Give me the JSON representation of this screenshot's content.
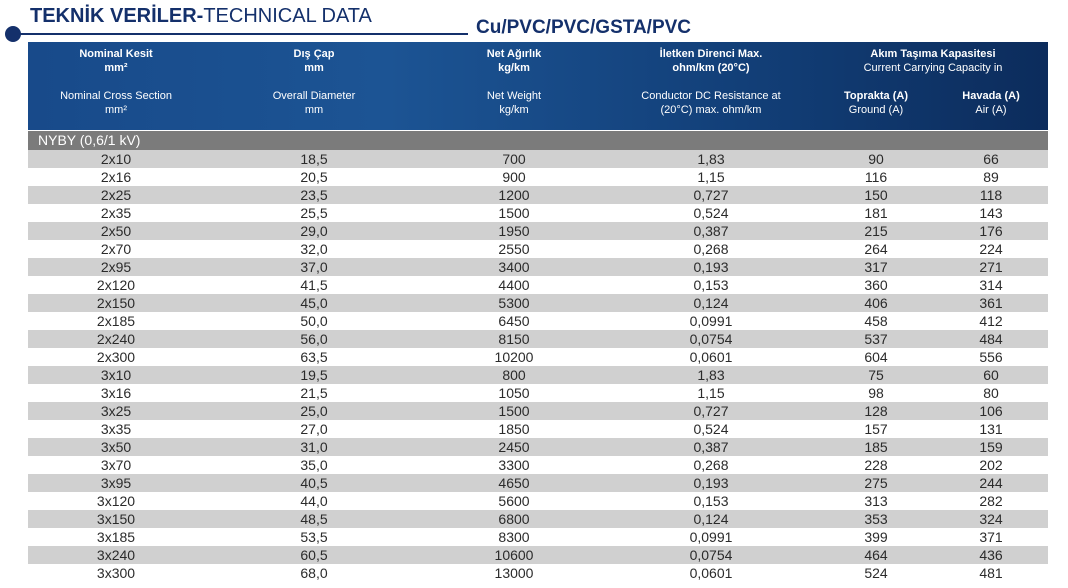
{
  "title": {
    "bold": "TEKNİK VERİLER-",
    "regular": "TECHNICAL DATA"
  },
  "cable_type": "Cu/PVC/PVC/GSTA/PVC",
  "columns": {
    "col1": {
      "tr": "Nominal Kesit",
      "tr_unit": "mm²",
      "en": "Nominal Cross Section",
      "en_unit": "mm²"
    },
    "col2": {
      "tr": "Dış Çap",
      "tr_unit": "mm",
      "en": "Overall Diameter",
      "en_unit": "mm"
    },
    "col3": {
      "tr": "Net Ağırlık",
      "tr_unit": "kg/km",
      "en": "Net Weight",
      "en_unit": "kg/km"
    },
    "col4": {
      "tr": "İletken Direnci Max.",
      "tr_unit": "ohm/km (20°C)",
      "en": "Conductor DC Resistance at",
      "en_unit": "(20°C) max. ohm/km"
    },
    "capacity": {
      "tr": "Akım Taşıma Kapasitesi",
      "en": "Current Carrying Capacity in"
    },
    "ground": {
      "tr": "Toprakta (A)",
      "en": "Ground (A)"
    },
    "air": {
      "tr": "Havada (A)",
      "en": "Air (A)"
    }
  },
  "section_label": "NYBY (0,6/1 kV)",
  "rows": [
    [
      "2x10",
      "18,5",
      "700",
      "1,83",
      "90",
      "66"
    ],
    [
      "2x16",
      "20,5",
      "900",
      "1,15",
      "116",
      "89"
    ],
    [
      "2x25",
      "23,5",
      "1200",
      "0,727",
      "150",
      "118"
    ],
    [
      "2x35",
      "25,5",
      "1500",
      "0,524",
      "181",
      "143"
    ],
    [
      "2x50",
      "29,0",
      "1950",
      "0,387",
      "215",
      "176"
    ],
    [
      "2x70",
      "32,0",
      "2550",
      "0,268",
      "264",
      "224"
    ],
    [
      "2x95",
      "37,0",
      "3400",
      "0,193",
      "317",
      "271"
    ],
    [
      "2x120",
      "41,5",
      "4400",
      "0,153",
      "360",
      "314"
    ],
    [
      "2x150",
      "45,0",
      "5300",
      "0,124",
      "406",
      "361"
    ],
    [
      "2x185",
      "50,0",
      "6450",
      "0,0991",
      "458",
      "412"
    ],
    [
      "2x240",
      "56,0",
      "8150",
      "0,0754",
      "537",
      "484"
    ],
    [
      "2x300",
      "63,5",
      "10200",
      "0,0601",
      "604",
      "556"
    ],
    [
      "3x10",
      "19,5",
      "800",
      "1,83",
      "75",
      "60"
    ],
    [
      "3x16",
      "21,5",
      "1050",
      "1,15",
      "98",
      "80"
    ],
    [
      "3x25",
      "25,0",
      "1500",
      "0,727",
      "128",
      "106"
    ],
    [
      "3x35",
      "27,0",
      "1850",
      "0,524",
      "157",
      "131"
    ],
    [
      "3x50",
      "31,0",
      "2450",
      "0,387",
      "185",
      "159"
    ],
    [
      "3x70",
      "35,0",
      "3300",
      "0,268",
      "228",
      "202"
    ],
    [
      "3x95",
      "40,5",
      "4650",
      "0,193",
      "275",
      "244"
    ],
    [
      "3x120",
      "44,0",
      "5600",
      "0,153",
      "313",
      "282"
    ],
    [
      "3x150",
      "48,5",
      "6800",
      "0,124",
      "353",
      "324"
    ],
    [
      "3x185",
      "53,5",
      "8300",
      "0,0991",
      "399",
      "371"
    ],
    [
      "3x240",
      "60,5",
      "10600",
      "0,0754",
      "464",
      "436"
    ],
    [
      "3x300",
      "68,0",
      "13000",
      "0,0601",
      "524",
      "481"
    ]
  ]
}
